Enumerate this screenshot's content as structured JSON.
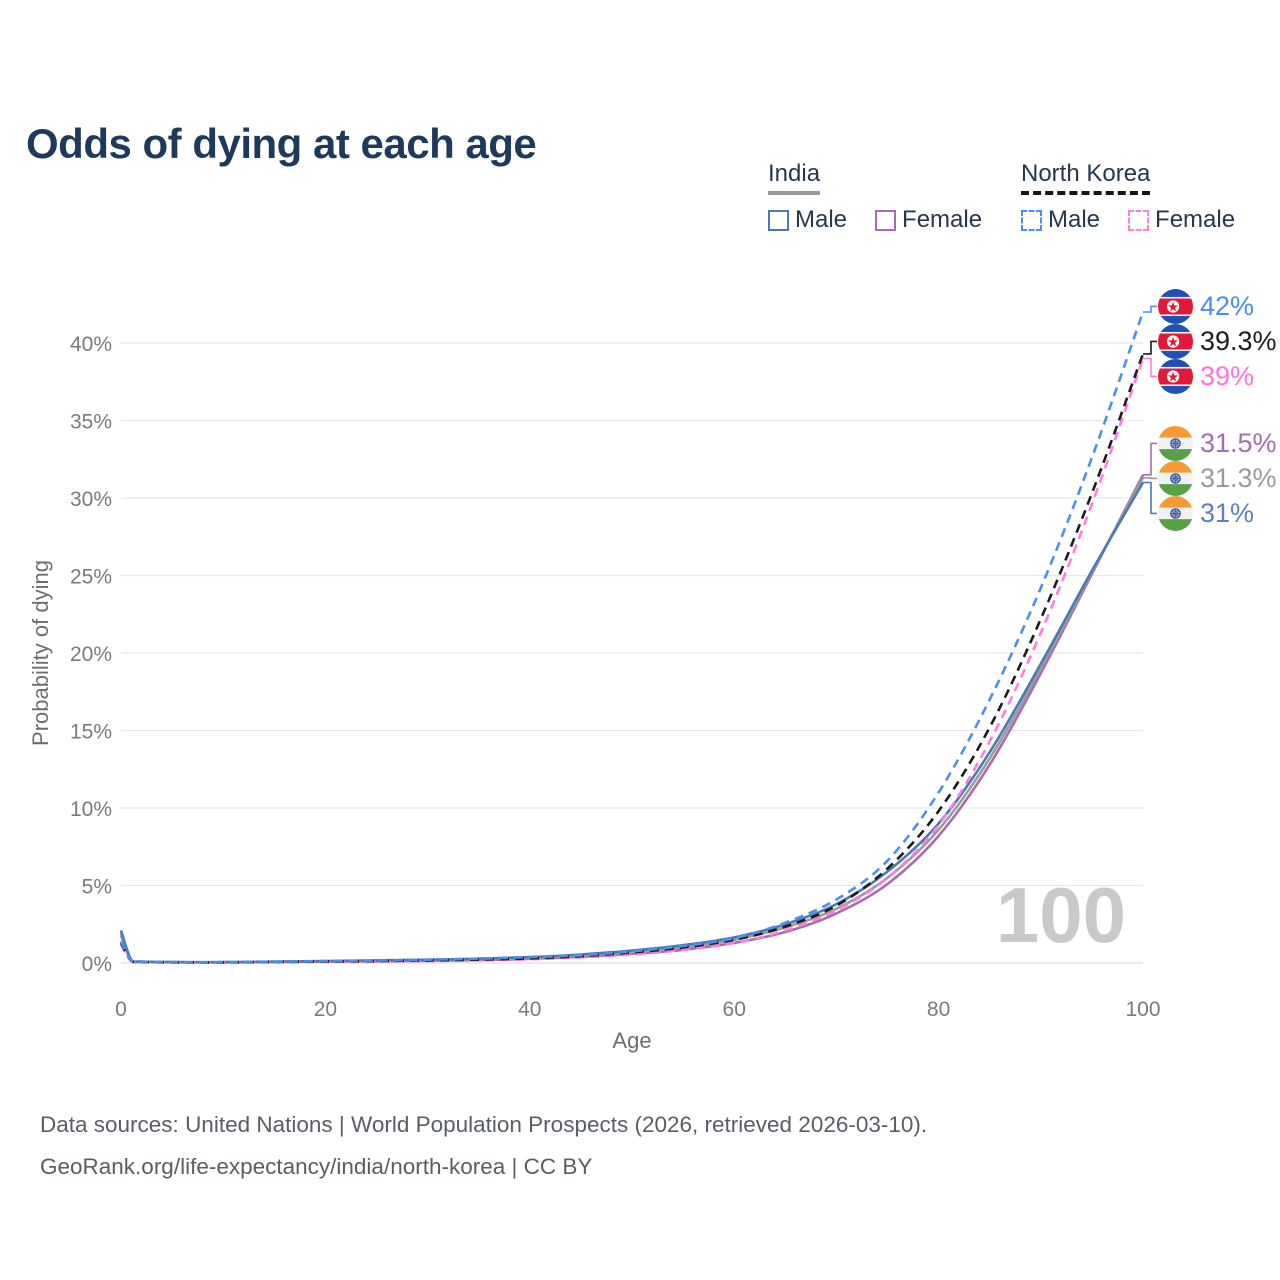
{
  "title": "Odds of dying at each age",
  "legend": {
    "groups": [
      {
        "name": "India",
        "line_style": "solid",
        "underline_color": "#999999",
        "items": [
          {
            "label": "Male",
            "color": "#4a79b6",
            "dashed": false
          },
          {
            "label": "Female",
            "color": "#a76bb2",
            "dashed": false
          }
        ]
      },
      {
        "name": "North Korea",
        "line_style": "dashed",
        "underline_color": "#151515",
        "items": [
          {
            "label": "Male",
            "color": "#4d8fec",
            "dashed": true
          },
          {
            "label": "Female",
            "color": "#ff7ce0",
            "dashed": true
          }
        ]
      }
    ]
  },
  "chart_data": {
    "type": "line",
    "title": "Odds of dying at each age",
    "xlabel": "Age",
    "ylabel": "Probability of dying",
    "xlim": [
      0,
      100
    ],
    "ylim": [
      0,
      43
    ],
    "grid": true,
    "legend_position": "top-right",
    "watermark": "100",
    "x_ticks": [
      {
        "value": 0,
        "label": "0"
      },
      {
        "value": 20,
        "label": "20"
      },
      {
        "value": 40,
        "label": "40"
      },
      {
        "value": 60,
        "label": "60"
      },
      {
        "value": 80,
        "label": "80"
      },
      {
        "value": 100,
        "label": "100"
      }
    ],
    "y_ticks": [
      {
        "value": 0,
        "label": "0%"
      },
      {
        "value": 5,
        "label": "5%"
      },
      {
        "value": 10,
        "label": "10%"
      },
      {
        "value": 15,
        "label": "15%"
      },
      {
        "value": 20,
        "label": "20%"
      },
      {
        "value": 25,
        "label": "25%"
      },
      {
        "value": 30,
        "label": "30%"
      },
      {
        "value": 35,
        "label": "35%"
      },
      {
        "value": 40,
        "label": "40%"
      }
    ],
    "ages": [
      0,
      1,
      2,
      5,
      10,
      15,
      20,
      25,
      30,
      35,
      40,
      45,
      50,
      55,
      60,
      65,
      70,
      75,
      80,
      85,
      90,
      95,
      100
    ],
    "series": [
      {
        "name": "India Female",
        "country": "india",
        "sex": "female",
        "color": "#a76bb2",
        "dashed": false,
        "end_value": 31.5,
        "end_label": "31.5%",
        "label_color": "#a66bb2",
        "flag": "india-flag-icon",
        "values": [
          1.8,
          0.16,
          0.08,
          0.05,
          0.04,
          0.06,
          0.09,
          0.11,
          0.14,
          0.19,
          0.27,
          0.4,
          0.6,
          0.85,
          1.3,
          2.0,
          3.2,
          5.1,
          8.2,
          12.8,
          18.7,
          25.1,
          31.5
        ]
      },
      {
        "name": "India Both sexes",
        "country": "india",
        "sex": "all",
        "color": "#9b9b9b",
        "dashed": false,
        "end_value": 31.3,
        "end_label": "31.3%",
        "label_color": "#9a9a9a",
        "flag": "india-flag-icon",
        "values": [
          1.95,
          0.18,
          0.09,
          0.05,
          0.05,
          0.08,
          0.11,
          0.14,
          0.18,
          0.24,
          0.33,
          0.48,
          0.7,
          1.0,
          1.5,
          2.3,
          3.5,
          5.5,
          8.6,
          13.2,
          19.0,
          25.2,
          31.3
        ]
      },
      {
        "name": "India Male",
        "country": "india",
        "sex": "male",
        "color": "#4a79b6",
        "dashed": false,
        "end_value": 31,
        "end_label": "31%",
        "label_color": "#5c81c1",
        "flag": "india-flag-icon",
        "values": [
          2.1,
          0.2,
          0.1,
          0.06,
          0.06,
          0.09,
          0.13,
          0.17,
          0.21,
          0.28,
          0.38,
          0.55,
          0.8,
          1.15,
          1.65,
          2.5,
          3.8,
          5.9,
          9.0,
          13.6,
          19.3,
          25.3,
          31
        ]
      },
      {
        "name": "North Korea Female",
        "country": "north-korea",
        "sex": "female",
        "color": "#ff7ce0",
        "dashed": true,
        "end_value": 39,
        "end_label": "39%",
        "label_color": "#ff72df",
        "flag": "north-korea-flag-icon",
        "values": [
          1.2,
          0.13,
          0.06,
          0.04,
          0.04,
          0.06,
          0.08,
          0.1,
          0.13,
          0.17,
          0.24,
          0.36,
          0.55,
          0.85,
          1.3,
          2.1,
          3.4,
          5.5,
          8.9,
          14.3,
          21.3,
          29.6,
          39
        ]
      },
      {
        "name": "North Korea Both sexes",
        "country": "north-korea",
        "sex": "all",
        "color": "#1c1c1c",
        "dashed": true,
        "end_value": 39.3,
        "end_label": "39.3%",
        "label_color": "#1d1d1d",
        "flag": "north-korea-flag-icon",
        "values": [
          1.3,
          0.14,
          0.07,
          0.04,
          0.04,
          0.07,
          0.1,
          0.13,
          0.17,
          0.22,
          0.3,
          0.44,
          0.68,
          1.0,
          1.5,
          2.35,
          3.7,
          6.1,
          9.8,
          15.2,
          22.2,
          30.3,
          39.3
        ]
      },
      {
        "name": "North Korea Male",
        "country": "north-korea",
        "sex": "male",
        "color": "#4d8fec",
        "dashed": true,
        "end_value": 42,
        "end_label": "42%",
        "label_color": "#4a8cf1",
        "flag": "north-korea-flag-icon",
        "values": [
          1.4,
          0.15,
          0.08,
          0.05,
          0.05,
          0.08,
          0.12,
          0.16,
          0.21,
          0.28,
          0.38,
          0.5,
          0.75,
          1.1,
          1.6,
          2.6,
          4.1,
          6.6,
          11.0,
          17.0,
          24.2,
          32.6,
          42
        ]
      }
    ]
  },
  "footer": {
    "line1": "Data sources: United Nations | World Population Prospects (2026, retrieved 2026-03-10).",
    "line2": "GeoRank.org/life-expectancy/india/north-korea | CC BY"
  },
  "colors": {
    "title": "#1d3a5c",
    "grid": "#e7e7e7",
    "tick_text": "#7a7a7a",
    "watermark": "#c9c9c9"
  }
}
